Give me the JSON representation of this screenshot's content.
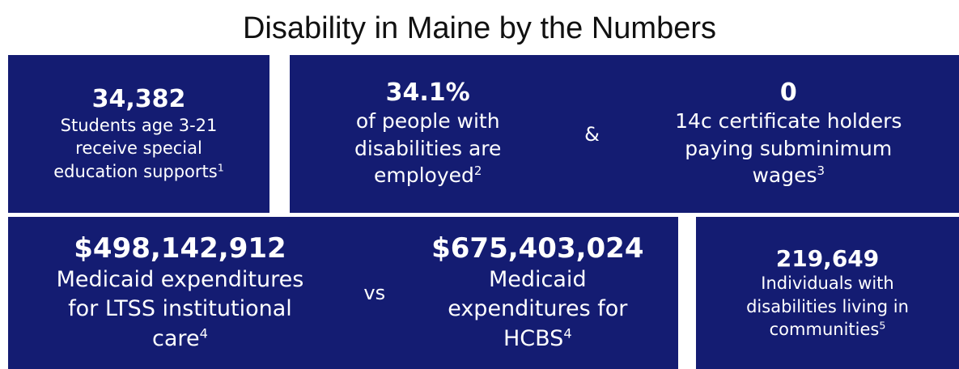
{
  "title": "Disability in Maine by the Numbers",
  "boxes": [
    {
      "items": [
        {
          "figure": "34,382",
          "text": "Students age 3-21 receive special education supports",
          "note": "1"
        }
      ]
    },
    {
      "items": [
        {
          "figure": "34.1%",
          "text": "of people with disabilities are employed",
          "note": "2"
        },
        {
          "figure": "0",
          "text": "14c certificate holders paying subminimum wages",
          "note": "3"
        }
      ],
      "connector": "&"
    },
    {
      "items": [
        {
          "figure": "$498,142,912",
          "text": "Medicaid expenditures for LTSS institutional care",
          "note": "4"
        },
        {
          "figure": "$675,403,024",
          "text": "Medicaid expenditures for HCBS",
          "note": "4"
        }
      ],
      "connector": "vs"
    },
    {
      "items": [
        {
          "figure": "219,649",
          "text": "Individuals with disabilities living in communities",
          "note": "5"
        }
      ]
    }
  ]
}
